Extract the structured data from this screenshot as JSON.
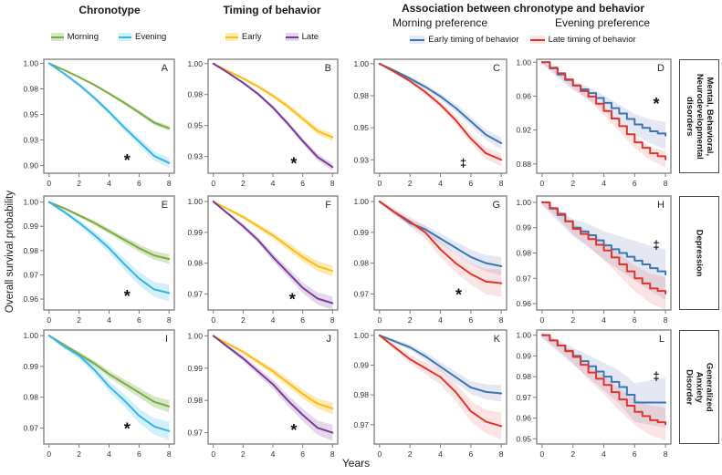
{
  "figure": {
    "xlabel": "Years",
    "ylabel": "Overall survival probability",
    "col_titles": {
      "chronotype": "Chronotype",
      "timing": "Timing of behavior",
      "association": "Association between chronotype  and behavior"
    },
    "subtitles": {
      "morning": "Morning preference",
      "evening": "Evening preference"
    }
  },
  "row_labels": [
    "Mental, Behavioral,\nNeurodevelopmental\ndisorders",
    "Depression",
    "Generalized Anxiety\nDisorder"
  ],
  "palette": {
    "morning": {
      "line": "#79AC41",
      "band": "rgba(121,172,65,0.30)"
    },
    "evening": {
      "line": "#35B5E5",
      "band": "rgba(53,181,229,0.22)"
    },
    "early": {
      "line": "#FBBE16",
      "band": "rgba(251,190,22,0.32)"
    },
    "late": {
      "line": "#7A3A9B",
      "band": "rgba(122,58,155,0.20)"
    },
    "assoc_early": {
      "line": "#3878B4",
      "band": "rgba(125,135,195,0.20)"
    },
    "assoc_late": {
      "line": "#E0352B",
      "band": "rgba(224,53,43,0.13)"
    }
  },
  "legends": {
    "chronotype": [
      {
        "label": "Morning",
        "key": "morning"
      },
      {
        "label": "Evening",
        "key": "evening"
      }
    ],
    "timing": [
      {
        "label": "Early",
        "key": "early"
      },
      {
        "label": "Late",
        "key": "late"
      }
    ],
    "association": [
      {
        "label": "Early timing of behavior",
        "key": "assoc_early"
      },
      {
        "label": "Late timing of behavior",
        "key": "assoc_late"
      }
    ]
  },
  "chart_data": {
    "type": "line",
    "note": "Kaplan-Meier overall survival curves with shaded confidence bands",
    "x": [
      0,
      1,
      2,
      3,
      4,
      5,
      6,
      7,
      8
    ],
    "xticks": [
      0,
      2,
      4,
      6,
      8
    ],
    "xlim": [
      -0.35,
      8.35
    ],
    "panels": [
      {
        "letter": "A",
        "row": 0,
        "col": 0,
        "step": false,
        "ylim": [
          0.8925,
          1.004
        ],
        "yticks": [
          {
            "label": "1.00",
            "v": 1.0
          },
          {
            "label": "0.98",
            "v": 0.975
          },
          {
            "label": "0.95",
            "v": 0.95
          },
          {
            "label": "0.93",
            "v": 0.925
          },
          {
            "label": "0.90",
            "v": 0.9
          }
        ],
        "sig": {
          "symbol": "*",
          "x": 5.2,
          "y": 0.906
        },
        "series": [
          {
            "name": "Morning",
            "key": "morning",
            "bw": 0.0025,
            "values": [
              1,
              0.9935,
              0.9865,
              0.979,
              0.9705,
              0.9615,
              0.952,
              0.942,
              0.9365
            ]
          },
          {
            "name": "Evening",
            "key": "evening",
            "bw": 0.005,
            "values": [
              1,
              0.99,
              0.979,
              0.9665,
              0.9525,
              0.9375,
              0.9235,
              0.9095,
              0.9025
            ]
          }
        ]
      },
      {
        "letter": "B",
        "row": 0,
        "col": 1,
        "step": false,
        "ylim": [
          0.9115,
          1.0035
        ],
        "yticks": [
          {
            "label": "1.00",
            "v": 1.0
          },
          {
            "label": "0.98",
            "v": 0.975
          },
          {
            "label": "0.95",
            "v": 0.95
          },
          {
            "label": "0.93",
            "v": 0.925
          }
        ],
        "sig": {
          "symbol": "*",
          "x": 5.4,
          "y": 0.92
        },
        "series": [
          {
            "name": "Early",
            "key": "early",
            "bw": 0.003,
            "values": [
              1,
              0.994,
              0.988,
              0.9815,
              0.974,
              0.9655,
              0.9555,
              0.9455,
              0.9405
            ]
          },
          {
            "name": "Late",
            "key": "late",
            "bw": 0.003,
            "values": [
              1,
              0.9925,
              0.9845,
              0.9755,
              0.9645,
              0.9515,
              0.9375,
              0.9245,
              0.9165
            ]
          }
        ]
      },
      {
        "letter": "C",
        "row": 0,
        "col": 2,
        "step": false,
        "ylim": [
          0.9145,
          1.0035
        ],
        "yticks": [
          {
            "label": "1.00",
            "v": 1.0
          },
          {
            "label": "0.98",
            "v": 0.975
          },
          {
            "label": "0.95",
            "v": 0.95
          },
          {
            "label": "0.93",
            "v": 0.925
          }
        ],
        "sig": {
          "symbol": "‡",
          "x": 5.5,
          "y": 0.9225
        },
        "series": [
          {
            "name": "Early timing of behavior",
            "key": "assoc_early",
            "bw": 0.0045,
            "values": [
              1,
              0.9945,
              0.9885,
              0.982,
              0.9745,
              0.9655,
              0.955,
              0.9445,
              0.938
            ]
          },
          {
            "name": "Late timing of behavior",
            "key": "assoc_late",
            "bw": 0.005,
            "values": [
              1,
              0.9935,
              0.9865,
              0.978,
              0.968,
              0.956,
              0.9415,
              0.93,
              0.925
            ]
          }
        ]
      },
      {
        "letter": "D",
        "row": 0,
        "col": 3,
        "step": true,
        "ylim": [
          0.869,
          1.0035
        ],
        "yticks": [
          {
            "label": "1.00",
            "v": 1.0
          },
          {
            "label": "0.96",
            "v": 0.96
          },
          {
            "label": "0.92",
            "v": 0.92
          },
          {
            "label": "0.88",
            "v": 0.88
          }
        ],
        "sig": {
          "symbol": "*",
          "x": 7.4,
          "y": 0.952
        },
        "series": [
          {
            "name": "Early timing of behavior",
            "key": "assoc_early",
            "bw": 0.016,
            "values": [
              1,
              0.9855,
              0.9725,
              0.9635,
              0.952,
              0.9395,
              0.9265,
              0.9185,
              0.9135
            ]
          },
          {
            "name": "Late timing of behavior",
            "key": "assoc_late",
            "bw": 0.009,
            "values": [
              1,
              0.987,
              0.9725,
              0.9595,
              0.9425,
              0.9245,
              0.9055,
              0.8925,
              0.8855
            ]
          }
        ]
      },
      {
        "letter": "E",
        "row": 1,
        "col": 0,
        "step": false,
        "ylim": [
          0.9555,
          1.0025
        ],
        "yticks": [
          {
            "label": "1.00",
            "v": 1.0
          },
          {
            "label": "0.99",
            "v": 0.99
          },
          {
            "label": "0.98",
            "v": 0.98
          },
          {
            "label": "0.97",
            "v": 0.97
          },
          {
            "label": "0.96",
            "v": 0.96
          }
        ],
        "sig": {
          "symbol": "*",
          "x": 5.2,
          "y": 0.9615
        },
        "series": [
          {
            "name": "Morning",
            "key": "morning",
            "bw": 0.002,
            "values": [
              1,
              0.9975,
              0.9945,
              0.9915,
              0.988,
              0.9845,
              0.981,
              0.978,
              0.9765
            ]
          },
          {
            "name": "Evening",
            "key": "evening",
            "bw": 0.0035,
            "values": [
              1,
              0.996,
              0.9915,
              0.9865,
              0.981,
              0.9745,
              0.9685,
              0.964,
              0.9625
            ]
          }
        ]
      },
      {
        "letter": "F",
        "row": 1,
        "col": 1,
        "step": false,
        "ylim": [
          0.9648,
          1.0018
        ],
        "yticks": [
          {
            "label": "1.00",
            "v": 1.0
          },
          {
            "label": "0.99",
            "v": 0.99
          },
          {
            "label": "0.98",
            "v": 0.98
          },
          {
            "label": "0.97",
            "v": 0.97
          }
        ],
        "sig": {
          "symbol": "*",
          "x": 5.3,
          "y": 0.9685
        },
        "series": [
          {
            "name": "Early",
            "key": "early",
            "bw": 0.0018,
            "values": [
              1,
              0.9975,
              0.995,
              0.992,
              0.989,
              0.9855,
              0.982,
              0.979,
              0.9775
            ]
          },
          {
            "name": "Late",
            "key": "late",
            "bw": 0.0022,
            "values": [
              1,
              0.996,
              0.992,
              0.9875,
              0.982,
              0.977,
              0.972,
              0.9685,
              0.967
            ]
          }
        ]
      },
      {
        "letter": "G",
        "row": 1,
        "col": 2,
        "step": false,
        "ylim": [
          0.9648,
          1.0018
        ],
        "yticks": [
          {
            "label": "1.00",
            "v": 1.0
          },
          {
            "label": "0.99",
            "v": 0.99
          },
          {
            "label": "0.98",
            "v": 0.98
          },
          {
            "label": "0.97",
            "v": 0.97
          }
        ],
        "sig": {
          "symbol": "*",
          "x": 5.2,
          "y": 0.97
        },
        "series": [
          {
            "name": "Early timing of behavior",
            "key": "assoc_early",
            "bw": 0.003,
            "values": [
              1,
              0.9965,
              0.993,
              0.991,
              0.988,
              0.985,
              0.982,
              0.98,
              0.979
            ]
          },
          {
            "name": "Late timing of behavior",
            "key": "assoc_late",
            "bw": 0.0045,
            "values": [
              1,
              0.9965,
              0.9935,
              0.99,
              0.9845,
              0.98,
              0.9765,
              0.974,
              0.9735
            ]
          }
        ]
      },
      {
        "letter": "H",
        "row": 1,
        "col": 3,
        "step": true,
        "ylim": [
          0.9575,
          1.0025
        ],
        "yticks": [
          {
            "label": "1.00",
            "v": 1.0
          },
          {
            "label": "0.99",
            "v": 0.99
          },
          {
            "label": "0.98",
            "v": 0.98
          },
          {
            "label": "0.97",
            "v": 0.97
          },
          {
            "label": "0.96",
            "v": 0.96
          }
        ],
        "sig": {
          "symbol": "‡",
          "x": 7.4,
          "y": 0.983
        },
        "series": [
          {
            "name": "Early timing of behavior",
            "key": "assoc_early",
            "bw": 0.01,
            "values": [
              1,
              0.995,
              0.99,
              0.987,
              0.983,
              0.98,
              0.977,
              0.974,
              0.9715
            ]
          },
          {
            "name": "Late timing of behavior",
            "key": "assoc_late",
            "bw": 0.0065,
            "values": [
              1,
              0.9955,
              0.9895,
              0.9855,
              0.981,
              0.9755,
              0.97,
              0.966,
              0.964
            ]
          }
        ]
      },
      {
        "letter": "I",
        "row": 2,
        "col": 0,
        "step": false,
        "ylim": [
          0.9648,
          1.0018
        ],
        "yticks": [
          {
            "label": "1.00",
            "v": 1.0
          },
          {
            "label": "0.99",
            "v": 0.99
          },
          {
            "label": "0.98",
            "v": 0.98
          },
          {
            "label": "0.97",
            "v": 0.97
          }
        ],
        "sig": {
          "symbol": "*",
          "x": 5.2,
          "y": 0.97
        },
        "series": [
          {
            "name": "Morning",
            "key": "morning",
            "bw": 0.002,
            "values": [
              1,
              0.997,
              0.994,
              0.991,
              0.9875,
              0.9845,
              0.9815,
              0.9785,
              0.977
            ]
          },
          {
            "name": "Evening",
            "key": "evening",
            "bw": 0.003,
            "values": [
              1,
              0.9965,
              0.9935,
              0.989,
              0.9835,
              0.979,
              0.974,
              0.9705,
              0.969
            ]
          }
        ]
      },
      {
        "letter": "J",
        "row": 2,
        "col": 1,
        "step": false,
        "ylim": [
          0.9665,
          1.0018
        ],
        "yticks": [
          {
            "label": "1.00",
            "v": 1.0
          },
          {
            "label": "0.99",
            "v": 0.99
          },
          {
            "label": "0.98",
            "v": 0.98
          },
          {
            "label": "0.97",
            "v": 0.97
          }
        ],
        "sig": {
          "symbol": "*",
          "x": 5.4,
          "y": 0.971
        },
        "series": [
          {
            "name": "Early",
            "key": "early",
            "bw": 0.0018,
            "values": [
              1,
              0.9975,
              0.995,
              0.992,
              0.989,
              0.9855,
              0.982,
              0.979,
              0.9775
            ]
          },
          {
            "name": "Late",
            "key": "late",
            "bw": 0.0025,
            "values": [
              1,
              0.9965,
              0.993,
              0.989,
              0.985,
              0.98,
              0.9755,
              0.9715,
              0.97
            ]
          }
        ]
      },
      {
        "letter": "K",
        "row": 2,
        "col": 2,
        "step": false,
        "ylim": [
          0.9635,
          1.0018
        ],
        "yticks": [
          {
            "label": "1.00",
            "v": 1.0
          },
          {
            "label": "0.99",
            "v": 0.99
          },
          {
            "label": "0.98",
            "v": 0.98
          },
          {
            "label": "0.97",
            "v": 0.97
          }
        ],
        "sig": null,
        "series": [
          {
            "name": "Early timing of behavior",
            "key": "assoc_early",
            "bw": 0.0028,
            "values": [
              1,
              0.998,
              0.996,
              0.993,
              0.9895,
              0.986,
              0.9825,
              0.981,
              0.9805
            ]
          },
          {
            "name": "Late timing of behavior",
            "key": "assoc_late",
            "bw": 0.0045,
            "values": [
              1,
              0.996,
              0.992,
              0.989,
              0.986,
              0.981,
              0.9745,
              0.971,
              0.9695
            ]
          }
        ]
      },
      {
        "letter": "L",
        "row": 2,
        "col": 3,
        "step": true,
        "ylim": [
          0.9475,
          1.0025
        ],
        "yticks": [
          {
            "label": "1.00",
            "v": 1.0
          },
          {
            "label": "0.99",
            "v": 0.99
          },
          {
            "label": "0.98",
            "v": 0.98
          },
          {
            "label": "0.97",
            "v": 0.97
          },
          {
            "label": "0.96",
            "v": 0.96
          },
          {
            "label": "0.95",
            "v": 0.95
          }
        ],
        "sig": {
          "symbol": "‡",
          "x": 7.4,
          "y": 0.98
        },
        "series": [
          {
            "name": "Early timing of behavior",
            "key": "assoc_early",
            "bw": 0.012,
            "values": [
              1,
              0.995,
              0.99,
              0.985,
              0.98,
              0.975,
              0.9675,
              0.9675,
              0.9675
            ]
          },
          {
            "name": "Late timing of behavior",
            "key": "assoc_late",
            "bw": 0.008,
            "values": [
              1,
              0.995,
              0.9895,
              0.982,
              0.976,
              0.969,
              0.963,
              0.959,
              0.957
            ]
          }
        ]
      }
    ]
  }
}
